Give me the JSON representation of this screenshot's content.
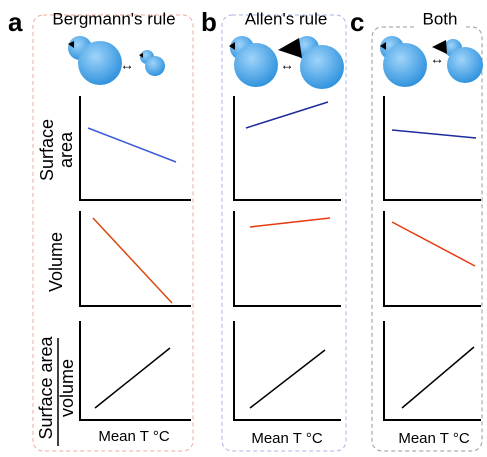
{
  "panels": [
    {
      "letter": "a",
      "title": "Bergmann's rule"
    },
    {
      "letter": "b",
      "title": "Allen's rule"
    },
    {
      "letter": "c",
      "title": "Both"
    }
  ],
  "y_labels": {
    "surface_area": [
      "Surface",
      "area"
    ],
    "volume": "Volume",
    "ratio": {
      "numerator": "Surface area",
      "denominator": "volume"
    }
  },
  "x_label": "Mean T °C"
}
